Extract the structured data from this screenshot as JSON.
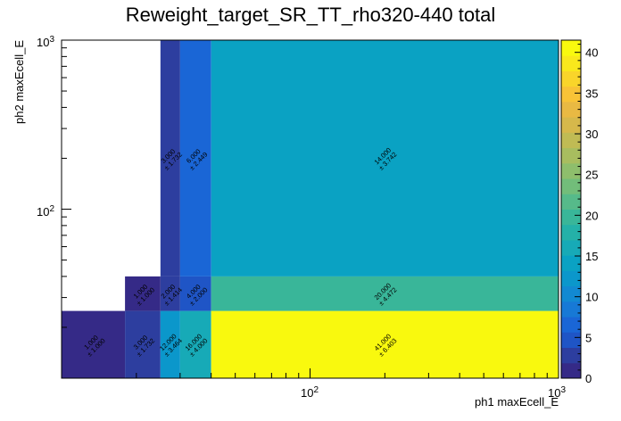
{
  "chart_data": {
    "type": "heatmap",
    "title": "Reweight_target_SR_TT_rho320-440 total",
    "xlabel": "ph1 maxEcell_E",
    "ylabel": "ph2 maxEcell_E",
    "x_scale": "log",
    "y_scale": "log",
    "xlim": [
      10,
      1000
    ],
    "ylim": [
      10,
      1000
    ],
    "x_edges": [
      10,
      18,
      25,
      30,
      40,
      1000
    ],
    "y_edges": [
      10,
      25,
      40,
      1000
    ],
    "x_tick_labels": [
      "10^2",
      "10^3"
    ],
    "y_tick_labels": [
      "10^2",
      "10^3"
    ],
    "cells": [
      {
        "x_bin": 0,
        "y_bin": 0,
        "value": 1,
        "label": "1.000",
        "error": "± 1.000"
      },
      {
        "x_bin": 1,
        "y_bin": 0,
        "value": 3,
        "label": "3.000",
        "error": "± 1.732"
      },
      {
        "x_bin": 2,
        "y_bin": 0,
        "value": 12,
        "label": "12.000",
        "error": "± 3.464"
      },
      {
        "x_bin": 3,
        "y_bin": 0,
        "value": 16,
        "label": "16.000",
        "error": "± 4.000"
      },
      {
        "x_bin": 4,
        "y_bin": 0,
        "value": 41,
        "label": "41.000",
        "error": "± 6.403"
      },
      {
        "x_bin": 1,
        "y_bin": 1,
        "value": 1,
        "label": "1.000",
        "error": "± 1.000"
      },
      {
        "x_bin": 2,
        "y_bin": 1,
        "value": 2,
        "label": "2.000",
        "error": "± 1.414"
      },
      {
        "x_bin": 3,
        "y_bin": 1,
        "value": 4,
        "label": "4.000",
        "error": "± 2.000"
      },
      {
        "x_bin": 4,
        "y_bin": 1,
        "value": 20,
        "label": "20.000",
        "error": "± 4.472"
      },
      {
        "x_bin": 2,
        "y_bin": 2,
        "value": 3,
        "label": "3.000",
        "error": "± 1.732"
      },
      {
        "x_bin": 3,
        "y_bin": 2,
        "value": 6,
        "label": "6.000",
        "error": "± 2.449"
      },
      {
        "x_bin": 4,
        "y_bin": 2,
        "value": 14,
        "label": "14.000",
        "error": "± 3.742"
      }
    ],
    "colorbar": {
      "range": [
        0,
        41.5
      ],
      "ticks": [
        0,
        5,
        10,
        15,
        20,
        25,
        30,
        35,
        40
      ],
      "palette": [
        "#352a87",
        "#2d3e9f",
        "#1f55c6",
        "#1a66d6",
        "#1779d6",
        "#1289d2",
        "#0b97cb",
        "#0aa2c3",
        "#17aab7",
        "#24b1a8",
        "#39b699",
        "#56ba8a",
        "#72bd7a",
        "#8ebe6c",
        "#a8bd5f",
        "#c0bb54",
        "#d6b84b",
        "#e9b943",
        "#f8c337",
        "#f9d52a",
        "#f9e81c",
        "#f9f90e"
      ]
    },
    "grid": false,
    "legend": "colorbar-right"
  }
}
